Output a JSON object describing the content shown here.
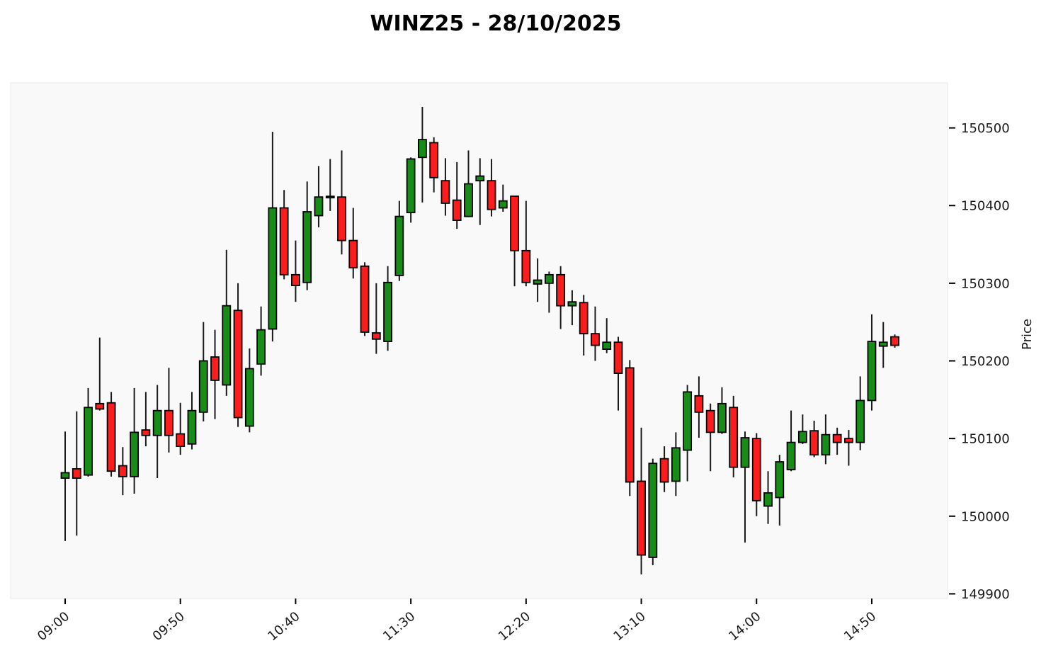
{
  "colors": {
    "up": "#178c17",
    "down": "#fb1d1d",
    "edge": "#000000",
    "wick": "#1a1a1a",
    "plot_bg": "#f9f9f9",
    "plot_border": "#e9e9e9",
    "text": "#1a1a1a",
    "figure_bg": "#ffffff"
  },
  "chart_data": {
    "type": "candlestick",
    "title": "WINZ25 - 28/10/2025",
    "ylabel": "Price",
    "xlabel": "",
    "timeframe_minutes": 5,
    "legend": "none",
    "grid": false,
    "y_ticks": [
      149900,
      150000,
      150100,
      150200,
      150300,
      150400,
      150500
    ],
    "ylim": [
      149894,
      150558
    ],
    "x_tick_indices": [
      0,
      10,
      20,
      30,
      40,
      50,
      60,
      70
    ],
    "x_ticklabels": [
      "09:00",
      "09:50",
      "10:40",
      "11:30",
      "12:20",
      "13:10",
      "14:00",
      "14:50"
    ],
    "columns": [
      "time",
      "open",
      "high",
      "low",
      "close"
    ],
    "candles": [
      [
        "09:00",
        150049,
        150109,
        149968,
        150056
      ],
      [
        "09:05",
        150061,
        150135,
        149975,
        150049
      ],
      [
        "09:10",
        150053,
        150165,
        150051,
        150140
      ],
      [
        "09:15",
        150145,
        150230,
        150136,
        150138
      ],
      [
        "09:20",
        150146,
        150160,
        150051,
        150058
      ],
      [
        "09:25",
        150065,
        150089,
        150027,
        150051
      ],
      [
        "09:30",
        150051,
        150165,
        150029,
        150108
      ],
      [
        "09:35",
        150111,
        150160,
        150090,
        150104
      ],
      [
        "09:40",
        150104,
        150169,
        150049,
        150136
      ],
      [
        "09:45",
        150136,
        150191,
        150082,
        150104
      ],
      [
        "09:50",
        150106,
        150146,
        150079,
        150090
      ],
      [
        "09:55",
        150093,
        150160,
        150086,
        150136
      ],
      [
        "10:00",
        150134,
        150250,
        150122,
        150200
      ],
      [
        "10:05",
        150205,
        150240,
        150125,
        150175
      ],
      [
        "10:10",
        150169,
        150343,
        150155,
        150271
      ],
      [
        "10:15",
        150265,
        150300,
        150115,
        150127
      ],
      [
        "10:20",
        150116,
        150216,
        150108,
        150190
      ],
      [
        "10:25",
        150196,
        150270,
        150181,
        150240
      ],
      [
        "10:30",
        150241,
        150495,
        150225,
        150397
      ],
      [
        "10:35",
        150397,
        150420,
        150305,
        150311
      ],
      [
        "10:40",
        150311,
        150355,
        150276,
        150297
      ],
      [
        "10:45",
        150301,
        150431,
        150291,
        150392
      ],
      [
        "10:50",
        150387,
        150451,
        150372,
        150411
      ],
      [
        "10:55",
        150411,
        150460,
        150393,
        150411
      ],
      [
        "11:00",
        150411,
        150471,
        150337,
        150355
      ],
      [
        "11:05",
        150355,
        150397,
        150306,
        150320
      ],
      [
        "11:10",
        150322,
        150327,
        150232,
        150237
      ],
      [
        "11:15",
        150236,
        150300,
        150209,
        150228
      ],
      [
        "11:20",
        150225,
        150322,
        150213,
        150301
      ],
      [
        "11:25",
        150310,
        150406,
        150303,
        150386
      ],
      [
        "11:30",
        150391,
        150462,
        150378,
        150460
      ],
      [
        "11:35",
        150462,
        150527,
        150404,
        150485
      ],
      [
        "11:40",
        150481,
        150488,
        150417,
        150436
      ],
      [
        "11:45",
        150432,
        150461,
        150387,
        150403
      ],
      [
        "11:50",
        150407,
        150456,
        150370,
        150381
      ],
      [
        "11:55",
        150386,
        150471,
        150385,
        150428
      ],
      [
        "12:00",
        150432,
        150461,
        150375,
        150438
      ],
      [
        "12:05",
        150432,
        150460,
        150386,
        150395
      ],
      [
        "12:10",
        150397,
        150427,
        150392,
        150406
      ],
      [
        "12:15",
        150412,
        150412,
        150296,
        150342
      ],
      [
        "12:20",
        150342,
        150406,
        150296,
        150301
      ],
      [
        "12:25",
        150299,
        150332,
        150276,
        150304
      ],
      [
        "12:30",
        150300,
        150315,
        150262,
        150311
      ],
      [
        "12:35",
        150311,
        150322,
        150241,
        150271
      ],
      [
        "12:40",
        150271,
        150291,
        150246,
        150276
      ],
      [
        "12:45",
        150275,
        150285,
        150207,
        150235
      ],
      [
        "12:50",
        150235,
        150270,
        150200,
        150220
      ],
      [
        "12:55",
        150215,
        150255,
        150210,
        150224
      ],
      [
        "13:00",
        150224,
        150231,
        150136,
        150184
      ],
      [
        "13:05",
        150191,
        150201,
        150026,
        150044
      ],
      [
        "13:10",
        150045,
        150114,
        149925,
        149950
      ],
      [
        "13:15",
        149947,
        150074,
        149937,
        150068
      ],
      [
        "13:20",
        150074,
        150090,
        150031,
        150044
      ],
      [
        "13:25",
        150045,
        150108,
        150026,
        150088
      ],
      [
        "13:30",
        150085,
        150169,
        150045,
        150160
      ],
      [
        "13:35",
        150155,
        150180,
        150101,
        150134
      ],
      [
        "13:40",
        150136,
        150145,
        150058,
        150108
      ],
      [
        "13:45",
        150108,
        150166,
        150106,
        150145
      ],
      [
        "13:50",
        150140,
        150155,
        150050,
        150063
      ],
      [
        "13:55",
        150063,
        150109,
        149966,
        150101
      ],
      [
        "14:00",
        150100,
        150107,
        150000,
        150020
      ],
      [
        "14:05",
        150013,
        150058,
        149990,
        150030
      ],
      [
        "14:10",
        150024,
        150079,
        149988,
        150070
      ],
      [
        "14:15",
        150060,
        150136,
        150058,
        150095
      ],
      [
        "14:20",
        150095,
        150131,
        150093,
        150109
      ],
      [
        "14:25",
        150110,
        150123,
        150076,
        150079
      ],
      [
        "14:30",
        150079,
        150131,
        150067,
        150105
      ],
      [
        "14:35",
        150105,
        150114,
        150079,
        150095
      ],
      [
        "14:40",
        150100,
        150111,
        150065,
        150095
      ],
      [
        "14:45",
        150095,
        150180,
        150085,
        150149
      ],
      [
        "14:50",
        150149,
        150260,
        150136,
        150225
      ],
      [
        "14:55",
        150219,
        150250,
        150191,
        150224
      ],
      [
        "15:00",
        150231,
        150234,
        150217,
        150220
      ]
    ]
  }
}
